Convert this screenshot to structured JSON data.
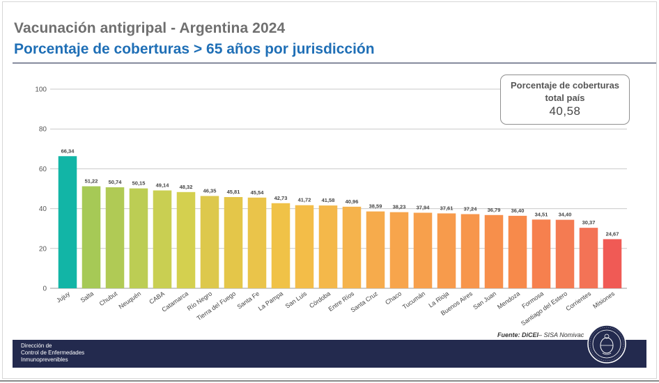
{
  "header": {
    "title": "Vacunación antigripal - Argentina 2024",
    "subtitle": "Porcentaje de coberturas > 65 años por jurisdicción"
  },
  "summary_box": {
    "line1": "Porcentaje de coberturas",
    "line2": "total país",
    "value": "40,58"
  },
  "source": {
    "label": "Fuente: DiCEI",
    "rest": "– SISA Nomivac"
  },
  "footer": {
    "line1": "Dirección de",
    "line2": "Control de Enfermedades",
    "line3": "Inmunoprevenibles"
  },
  "seal_icon": "ministerio-de-salud-seal",
  "chart_data": {
    "type": "bar",
    "title": "Porcentaje de coberturas > 65 años por jurisdicción",
    "xlabel": "",
    "ylabel": "",
    "ylim": [
      0,
      100
    ],
    "yticks": [
      0,
      20,
      40,
      60,
      80,
      100
    ],
    "grid": true,
    "categories": [
      "Jujuy",
      "Salta",
      "Chubut",
      "Neuquén",
      "CABA",
      "Catamarca",
      "Río Negro",
      "Tierra del Fuego",
      "Santa Fe",
      "La Pampa",
      "San Luis",
      "Córdoba",
      "Entre Ríos",
      "Santa Cruz",
      "Chaco",
      "Tucumán",
      "La Rioja",
      "Buenos Aires",
      "San Juan",
      "Mendoza",
      "Formosa",
      "Santiago del Estero",
      "Corrientes",
      "Misiones"
    ],
    "values": [
      66.34,
      51.22,
      50.74,
      50.15,
      49.14,
      48.32,
      46.35,
      45.81,
      45.54,
      42.73,
      41.72,
      41.58,
      40.96,
      38.59,
      38.23,
      37.94,
      37.61,
      37.24,
      36.79,
      36.4,
      34.51,
      34.4,
      30.37,
      24.67
    ],
    "value_labels": [
      "66,34",
      "51,22",
      "50,74",
      "50,15",
      "49,14",
      "48,32",
      "46,35",
      "45,81",
      "45,54",
      "42,73",
      "41,72",
      "41,58",
      "40,96",
      "38,59",
      "38,23",
      "37,94",
      "37,61",
      "37,24",
      "36,79",
      "36,40",
      "34,51",
      "34,40",
      "30,37",
      "24,67"
    ],
    "colors": [
      "#12b5a6",
      "#a6c956",
      "#b0ca55",
      "#bccd54",
      "#c9cf52",
      "#d4d04f",
      "#ddc84c",
      "#e4c649",
      "#eac44a",
      "#f0c247",
      "#f3bd48",
      "#f4b84a",
      "#f5b34c",
      "#f6ab4c",
      "#f7a54c",
      "#f7a04c",
      "#f79b4c",
      "#f7964b",
      "#f78f4b",
      "#f78a4b",
      "#f6804e",
      "#f47b52",
      "#f37356",
      "#f05a55"
    ]
  }
}
